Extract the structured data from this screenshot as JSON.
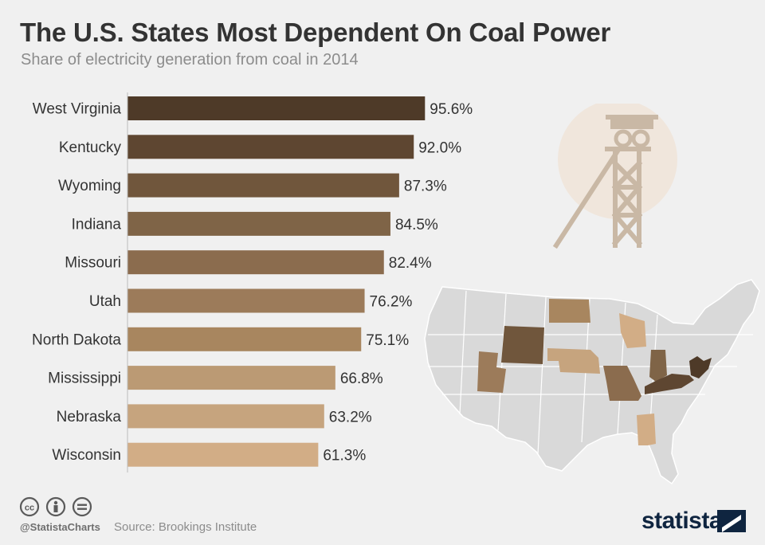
{
  "header": {
    "title": "The U.S. States Most Dependent On Coal Power",
    "subtitle": "Share of electricity generation from coal in 2014"
  },
  "chart_data": {
    "type": "bar",
    "orientation": "horizontal",
    "title": "The U.S. States Most Dependent On Coal Power",
    "subtitle": "Share of electricity generation from coal in 2014",
    "unit": "%",
    "categories": [
      "West Virginia",
      "Kentucky",
      "Wyoming",
      "Indiana",
      "Missouri",
      "Utah",
      "North Dakota",
      "Mississippi",
      "Nebraska",
      "Wisconsin"
    ],
    "values": [
      95.6,
      92.0,
      87.3,
      84.5,
      82.4,
      76.2,
      75.1,
      66.8,
      63.2,
      61.3
    ],
    "value_labels": [
      "95.6%",
      "92.0%",
      "87.3%",
      "84.5%",
      "82.4%",
      "76.2%",
      "75.1%",
      "66.8%",
      "63.2%",
      "61.3%"
    ],
    "colors": [
      "#4e3a28",
      "#5e4631",
      "#70563c",
      "#7f6447",
      "#8b6c4e",
      "#9c7b5a",
      "#a8865f",
      "#bb9a74",
      "#c6a47e",
      "#d2ad86"
    ],
    "xlim": [
      0,
      100
    ],
    "grid": false,
    "legend": "none"
  },
  "footer": {
    "handle": "@StatistaCharts",
    "source": "Source: Brookings Institute",
    "brand": "statista"
  },
  "icons": {
    "license": [
      "cc-icon",
      "by-icon",
      "nd-icon"
    ],
    "illustration": "mine-headframe-icon",
    "map": "us-map-icon"
  }
}
